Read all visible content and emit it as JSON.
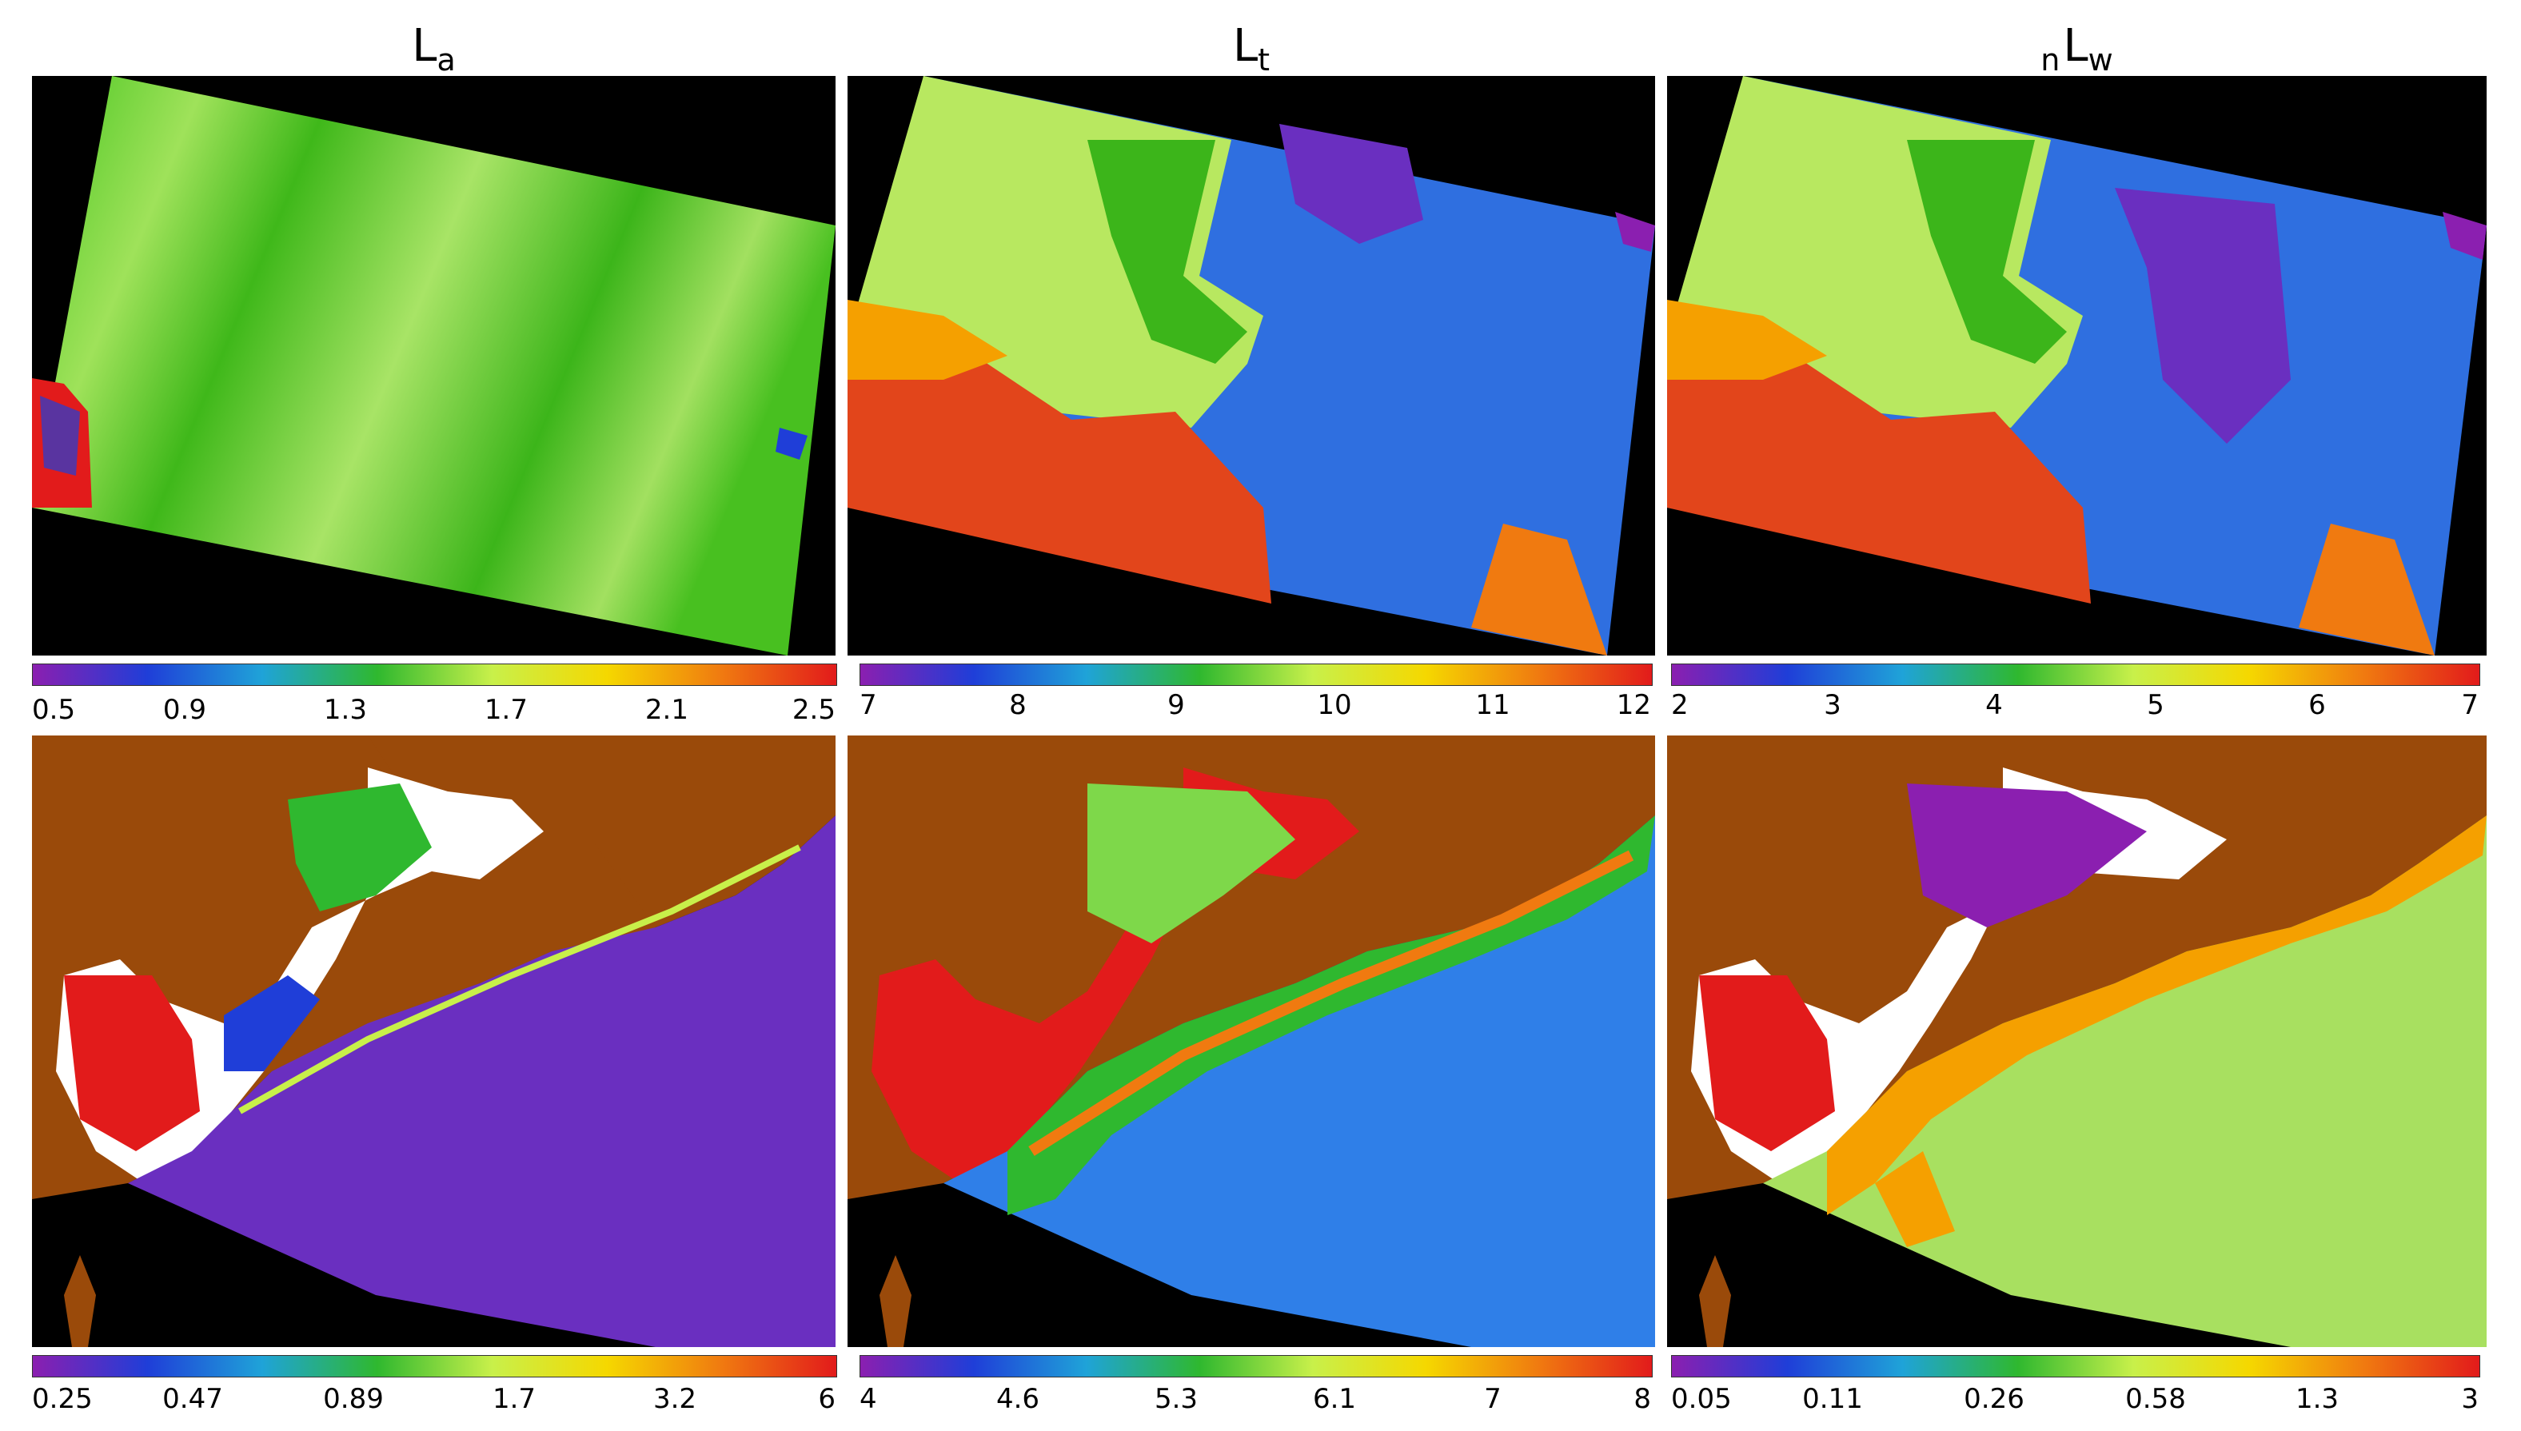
{
  "titles": {
    "col1": {
      "main": "L",
      "sub": "a"
    },
    "col2": {
      "main": "L",
      "sub": "t"
    },
    "col3": {
      "pre": "n",
      "main": "L",
      "sub": "w"
    }
  },
  "colorbars": [
    {
      "id": "top-1",
      "ticks": [
        "0.5",
        "0.9",
        "1.3",
        "1.7",
        "2.1",
        "2.5"
      ]
    },
    {
      "id": "top-2",
      "ticks": [
        "7",
        "8",
        "9",
        "10",
        "11",
        "12"
      ]
    },
    {
      "id": "top-3",
      "ticks": [
        "2",
        "3",
        "4",
        "5",
        "6",
        "7"
      ]
    },
    {
      "id": "bottom-1",
      "ticks": [
        "0.25",
        "0.47",
        "0.89",
        "1.7",
        "3.2",
        "6"
      ]
    },
    {
      "id": "bottom-2",
      "ticks": [
        "4",
        "4.6",
        "5.3",
        "6.1",
        "7",
        "8"
      ]
    },
    {
      "id": "bottom-3",
      "ticks": [
        "0.05",
        "0.11",
        "0.26",
        "0.58",
        "1.3",
        "3"
      ]
    }
  ],
  "colors": {
    "background": "#000000",
    "land": "#9a4a0a",
    "cloud": "#ffffff",
    "scale": [
      "#8b1fb0",
      "#1f3ed8",
      "#1fa3d8",
      "#2fb82f",
      "#c8f04a",
      "#f5d800",
      "#f07a10",
      "#e21b1b"
    ]
  }
}
